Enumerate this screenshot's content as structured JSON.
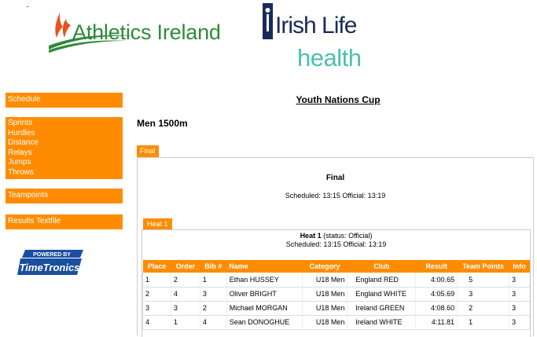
{
  "header": {
    "org_logo_text": "Athletics Ireland",
    "sponsor_logo_line1": "Irish Life",
    "sponsor_logo_line2": "health"
  },
  "sidebar": {
    "schedule": "Schedule",
    "events": [
      "Sprints",
      "Hurdles",
      "Distance",
      "Relays",
      "Jumps",
      "Throws"
    ],
    "teampoints": "Teampoints",
    "results_textfile": "Results Textfile",
    "powered_by": "POWERED BY",
    "powered_brand": "TimeTronics"
  },
  "main": {
    "competition_title": "Youth Nations Cup",
    "event_title": "Men 1500m",
    "round_tab": "Final",
    "round_title": "Final",
    "round_schedule": "Scheduled: 13:15 Official: 13:19",
    "heat_tab": "Heat 1",
    "heat_title": "Heat 1",
    "heat_status": " (status: Official)",
    "heat_schedule": "Scheduled: 13:15 Official: 13:19"
  },
  "table": {
    "headers": {
      "place": "Place",
      "order": "Order",
      "bib": "Bib #",
      "name": "Name",
      "category": "Category",
      "club": "Club",
      "result": "Result",
      "team_points": "Team Points",
      "info": "Info"
    },
    "rows": [
      {
        "place": "1",
        "order": "2",
        "bib": "1",
        "name": "Ethan HUSSEY",
        "category": "U18 Men",
        "club": "England RED",
        "result": "4:00.65",
        "team_points": "5",
        "info": "3"
      },
      {
        "place": "2",
        "order": "4",
        "bib": "3",
        "name": "Oliver BRIGHT",
        "category": "U18 Men",
        "club": "England WHITE",
        "result": "4:05.69",
        "team_points": "3",
        "info": "3"
      },
      {
        "place": "3",
        "order": "3",
        "bib": "2",
        "name": "Michael MORGAN",
        "category": "U18 Men",
        "club": "Ireland GREEN",
        "result": "4:08.60",
        "team_points": "2",
        "info": "3"
      },
      {
        "place": "4",
        "order": "1",
        "bib": "4",
        "name": "Sean DONOGHUE",
        "category": "U18 Men",
        "club": "Ireland WHITE",
        "result": "4:11.81",
        "team_points": "1",
        "info": "3"
      }
    ]
  },
  "colors": {
    "accent": "#ff8c00",
    "ai_green": "#2f8a3a",
    "il_navy": "#1a2a5a",
    "il_teal": "#4bbfb0"
  }
}
